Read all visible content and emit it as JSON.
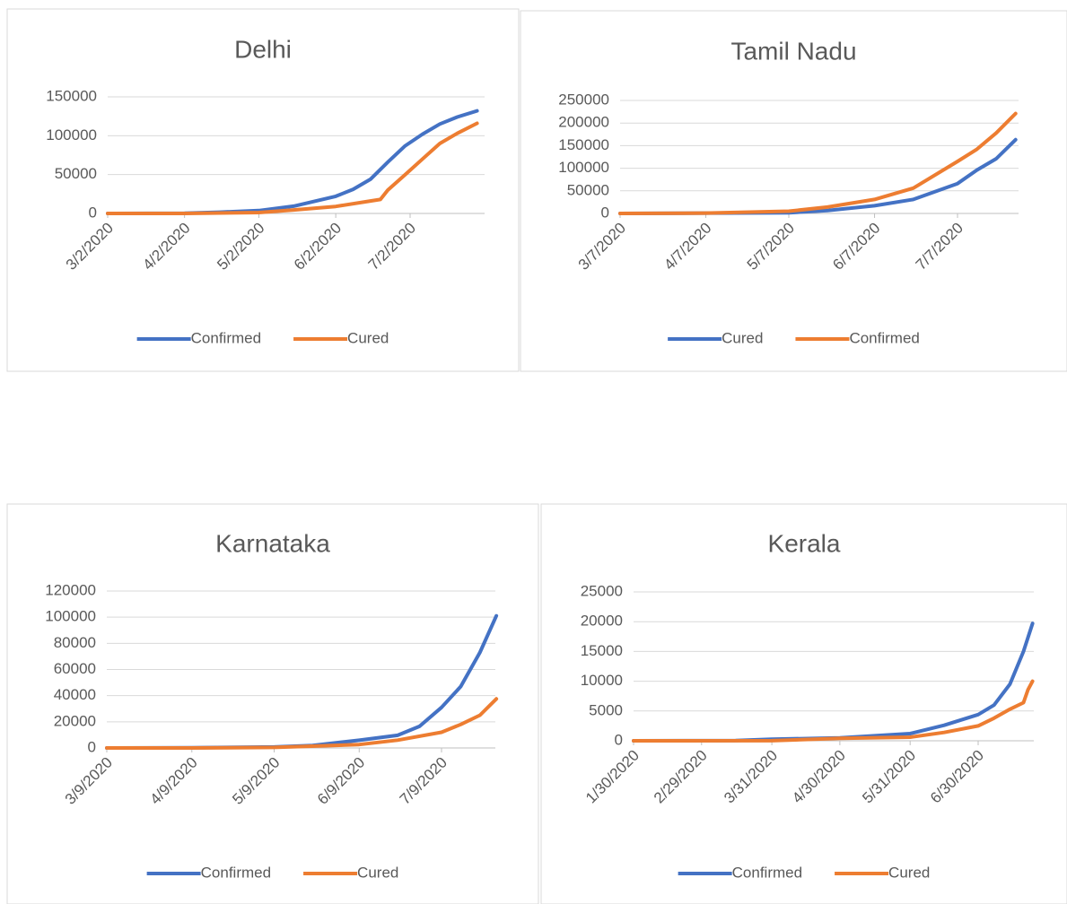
{
  "chart_data": [
    {
      "type": "line",
      "title": "Delhi",
      "xticks": [
        "3/2/2020",
        "4/2/2020",
        "5/2/2020",
        "6/2/2020",
        "7/2/2020"
      ],
      "ylim": [
        0,
        150000
      ],
      "yticks": [
        0,
        50000,
        100000,
        150000
      ],
      "grid": true,
      "legend": "bottom",
      "series": [
        {
          "name": "Confirmed",
          "color": "#4472c4",
          "x": [
            "3/2/2020",
            "4/2/2020",
            "4/16/2020",
            "5/2/2020",
            "5/16/2020",
            "6/2/2020",
            "6/9/2020",
            "6/16/2020",
            "6/23/2020",
            "6/30/2020",
            "7/7/2020",
            "7/14/2020",
            "7/21/2020",
            "7/29/2020"
          ],
          "values": [
            0,
            200,
            1600,
            3700,
            9300,
            22000,
            31000,
            44000,
            66000,
            87000,
            102000,
            115000,
            124000,
            132000
          ]
        },
        {
          "name": "Cured",
          "color": "#ed7d31",
          "x": [
            "3/2/2020",
            "4/2/2020",
            "5/2/2020",
            "5/16/2020",
            "6/2/2020",
            "6/16/2020",
            "6/20/2020",
            "6/23/2020",
            "6/30/2020",
            "7/7/2020",
            "7/14/2020",
            "7/21/2020",
            "7/29/2020"
          ],
          "values": [
            0,
            0,
            1200,
            4500,
            9000,
            16000,
            18000,
            30000,
            50000,
            70000,
            90000,
            103000,
            116000
          ]
        }
      ]
    },
    {
      "type": "line",
      "title": "Tamil Nadu",
      "xticks": [
        "3/7/2020",
        "4/7/2020",
        "5/7/2020",
        "6/7/2020",
        "7/7/2020"
      ],
      "ylim": [
        0,
        250000
      ],
      "yticks": [
        0,
        50000,
        100000,
        150000,
        200000,
        250000
      ],
      "grid": true,
      "legend": "bottom",
      "series": [
        {
          "name": "Cured",
          "color": "#4472c4",
          "x": [
            "3/7/2020",
            "5/7/2020",
            "5/21/2020",
            "6/7/2020",
            "6/21/2020",
            "7/7/2020",
            "7/14/2020",
            "7/21/2020",
            "7/28/2020"
          ],
          "values": [
            0,
            1500,
            6500,
            17000,
            31000,
            66000,
            96000,
            121000,
            163000
          ]
        },
        {
          "name": "Confirmed",
          "color": "#ed7d31",
          "x": [
            "3/7/2020",
            "4/7/2020",
            "5/7/2020",
            "5/21/2020",
            "6/7/2020",
            "6/21/2020",
            "7/7/2020",
            "7/14/2020",
            "7/21/2020",
            "7/28/2020"
          ],
          "values": [
            0,
            700,
            5000,
            14000,
            31000,
            56000,
            115000,
            142000,
            178000,
            221000
          ]
        }
      ]
    },
    {
      "type": "line",
      "title": "Karnataka",
      "xticks": [
        "3/9/2020",
        "4/9/2020",
        "5/9/2020",
        "6/9/2020",
        "7/9/2020"
      ],
      "ylim": [
        0,
        120000
      ],
      "yticks": [
        0,
        20000,
        40000,
        60000,
        80000,
        100000,
        120000
      ],
      "grid": true,
      "legend": "bottom",
      "series": [
        {
          "name": "Confirmed",
          "color": "#4472c4",
          "x": [
            "3/9/2020",
            "4/9/2020",
            "5/9/2020",
            "5/23/2020",
            "6/9/2020",
            "6/23/2020",
            "7/1/2020",
            "7/9/2020",
            "7/16/2020",
            "7/23/2020",
            "7/29/2020"
          ],
          "values": [
            0,
            180,
            750,
            1900,
            5900,
            9700,
            16500,
            31000,
            47000,
            73000,
            101000
          ]
        },
        {
          "name": "Cured",
          "color": "#ed7d31",
          "x": [
            "3/9/2020",
            "4/9/2020",
            "5/9/2020",
            "6/9/2020",
            "6/23/2020",
            "7/9/2020",
            "7/16/2020",
            "7/23/2020",
            "7/29/2020"
          ],
          "values": [
            0,
            30,
            400,
            2600,
            6000,
            12000,
            18000,
            25000,
            37500
          ]
        }
      ]
    },
    {
      "type": "line",
      "title": "Kerala",
      "xticks": [
        "1/30/2020",
        "2/29/2020",
        "3/31/2020",
        "4/30/2020",
        "5/31/2020",
        "6/30/2020"
      ],
      "ylim": [
        0,
        25000
      ],
      "yticks": [
        0,
        5000,
        10000,
        15000,
        20000,
        25000
      ],
      "grid": true,
      "legend": "bottom",
      "series": [
        {
          "name": "Confirmed",
          "color": "#4472c4",
          "x": [
            "1/30/2020",
            "3/15/2020",
            "3/31/2020",
            "4/30/2020",
            "5/31/2020",
            "6/15/2020",
            "6/30/2020",
            "7/7/2020",
            "7/14/2020",
            "7/20/2020",
            "7/24/2020"
          ],
          "values": [
            1,
            25,
            250,
            500,
            1200,
            2600,
            4400,
            6000,
            9500,
            15000,
            19700
          ]
        },
        {
          "name": "Cured",
          "color": "#ed7d31",
          "x": [
            "1/30/2020",
            "3/31/2020",
            "4/30/2020",
            "5/31/2020",
            "6/15/2020",
            "6/30/2020",
            "7/7/2020",
            "7/14/2020",
            "7/20/2020",
            "7/22/2020",
            "7/24/2020"
          ],
          "values": [
            0,
            20,
            400,
            600,
            1400,
            2500,
            3800,
            5300,
            6400,
            8600,
            10000
          ]
        }
      ]
    }
  ]
}
